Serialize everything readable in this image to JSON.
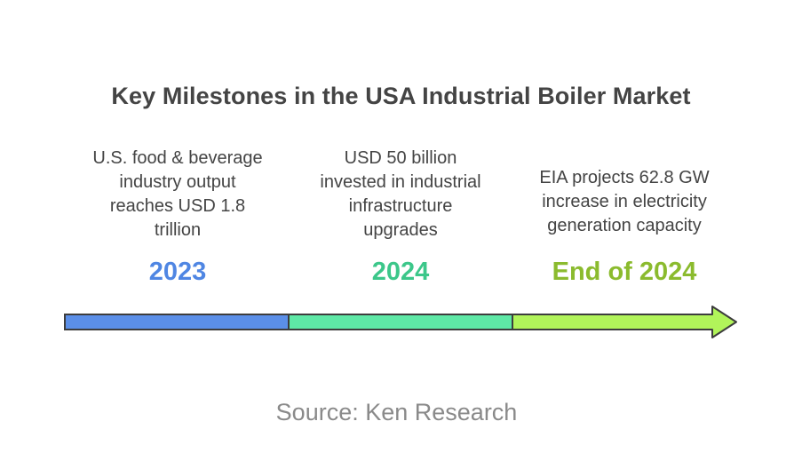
{
  "title": "Key Milestones in the USA Industrial Boiler Market",
  "milestones": [
    {
      "year": "2023",
      "lines": [
        "U.S. food & beverage",
        "industry output",
        "reaches USD 1.8",
        "trillion"
      ],
      "color": "#4f86e3"
    },
    {
      "year": "2024",
      "lines": [
        "USD 50 billion",
        "invested in industrial",
        "infrastructure",
        "upgrades"
      ],
      "color": "#3cc78a"
    },
    {
      "year": "End of 2024",
      "lines": [
        "EIA projects 62.8 GW",
        "increase in electricity",
        "generation capacity"
      ],
      "color": "#8bbb2e"
    }
  ],
  "colors": {
    "segment_1": "#5b8fe8",
    "segment_2": "#5ee8a6",
    "segment_3": "#b1f45a",
    "outline": "#3d3d3d",
    "text": "#444444",
    "source": "#8a8a8a"
  },
  "source": "Source: Ken Research"
}
